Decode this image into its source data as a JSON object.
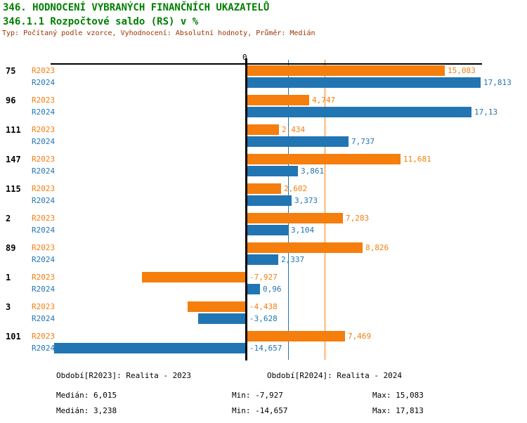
{
  "header": {
    "title": "346. HODNOCENÍ VYBRANÝCH FINANČNÍCH UKAZATELŮ",
    "subtitle": "346.1.1 Rozpočtové saldo (RS) v %",
    "meta": "Typ: Počítaný podle vzorce, Vyhodnocení: Absolutní hodnoty, Průměr: Medián"
  },
  "colors": {
    "r2023": "#F57E0D",
    "r2024": "#2275B3",
    "title_green": "#007F00",
    "meta_red": "#993300",
    "axis_black": "#000000"
  },
  "axis": {
    "zero_label": "0"
  },
  "chart_data": {
    "type": "bar",
    "orientation": "horizontal",
    "title": "346.1.1 Rozpočtové saldo (RS) v %",
    "categories": [
      "75",
      "96",
      "111",
      "147",
      "115",
      "2",
      "89",
      "1",
      "3",
      "101"
    ],
    "series": [
      {
        "name": "R2023",
        "color": "#F57E0D",
        "values": [
          15.083,
          4.747,
          2.434,
          11.681,
          2.602,
          7.283,
          8.826,
          -7.927,
          -4.438,
          7.469
        ],
        "value_labels": [
          "15,083",
          "4,747",
          "2,434",
          "11,681",
          "2,602",
          "7,283",
          "8,826",
          "-7,927",
          "-4,438",
          "7,469"
        ],
        "median": 6.015
      },
      {
        "name": "R2024",
        "color": "#2275B3",
        "values": [
          17.813,
          17.13,
          7.737,
          3.861,
          3.373,
          3.104,
          2.337,
          0.96,
          -3.628,
          -14.657
        ],
        "value_labels": [
          "17,813",
          "17,13",
          "7,737",
          "3,861",
          "3,373",
          "3,104",
          "2,337",
          "0,96",
          "-3,628",
          "-14,657"
        ],
        "median": 3.238
      }
    ],
    "xlim": [
      -14.9,
      18.0
    ],
    "zero_tick_label": "0",
    "grid": false,
    "legend_position": "bottom",
    "median_reference_lines": true
  },
  "footer": {
    "legend_r2023": "Období[R2023]: Realita - 2023",
    "legend_r2024": "Období[R2024]: Realita - 2024",
    "stats_r2023": {
      "median": "Medián: 6,015",
      "min": "Min: -7,927",
      "max": "Max: 15,083"
    },
    "stats_r2024": {
      "median": "Medián: 3,238",
      "min": "Min: -14,657",
      "max": "Max: 17,813"
    }
  }
}
